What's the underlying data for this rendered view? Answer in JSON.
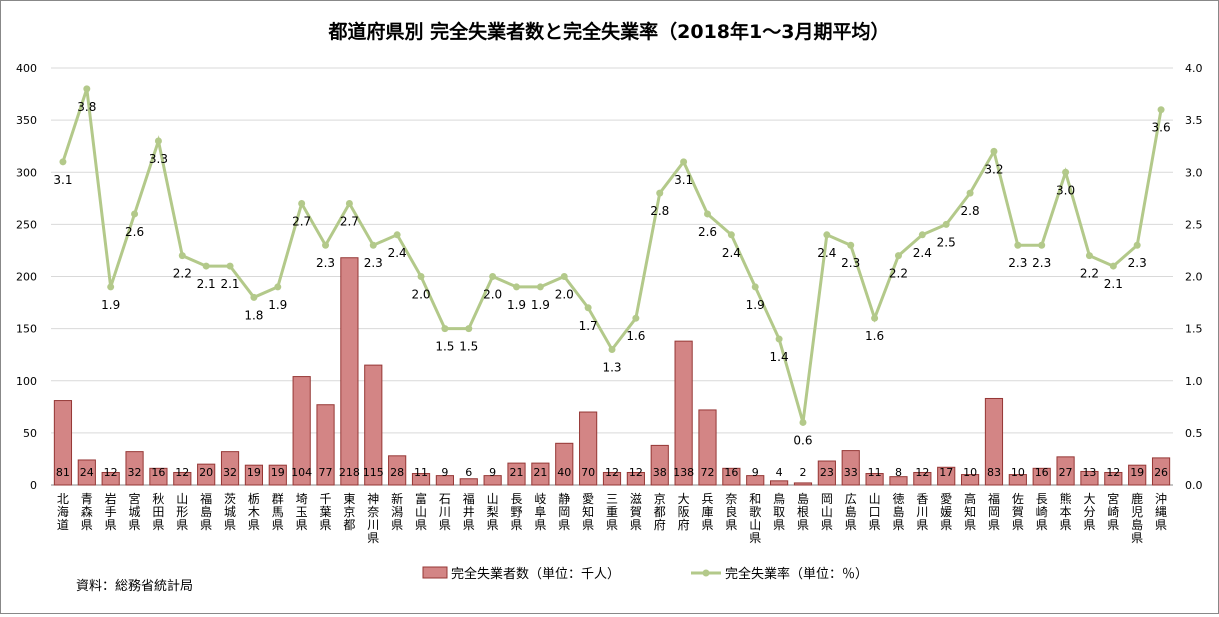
{
  "chart_data": {
    "type": "bar+line",
    "title": "都道府県別 完全失業者数と完全失業率（2018年1～3月期平均）",
    "source": "資料：総務省統計局",
    "categories": [
      "北海道",
      "青森県",
      "岩手県",
      "宮城県",
      "秋田県",
      "山形県",
      "福島県",
      "茨城県",
      "栃木県",
      "群馬県",
      "埼玉県",
      "千葉県",
      "東京都",
      "神奈川県",
      "新潟県",
      "富山県",
      "石川県",
      "福井県",
      "山梨県",
      "長野県",
      "岐阜県",
      "静岡県",
      "愛知県",
      "三重県",
      "滋賀県",
      "京都府",
      "大阪府",
      "兵庫県",
      "奈良県",
      "和歌山県",
      "鳥取県",
      "島根県",
      "岡山県",
      "広島県",
      "山口県",
      "徳島県",
      "香川県",
      "愛媛県",
      "高知県",
      "福岡県",
      "佐賀県",
      "長崎県",
      "熊本県",
      "大分県",
      "宮崎県",
      "鹿児島県",
      "沖縄県"
    ],
    "series": [
      {
        "name": "完全失業者数（単位：千人）",
        "type": "bar",
        "axis": "left",
        "color": "#d38585",
        "values": [
          81,
          24,
          12,
          32,
          16,
          12,
          20,
          32,
          19,
          19,
          104,
          77,
          218,
          115,
          28,
          11,
          9,
          6,
          9,
          21,
          21,
          40,
          70,
          12,
          12,
          38,
          138,
          72,
          16,
          9,
          4,
          2,
          23,
          33,
          11,
          8,
          12,
          17,
          10,
          83,
          10,
          16,
          27,
          13,
          12,
          19,
          26
        ]
      },
      {
        "name": "完全失業率（単位：％）",
        "type": "line",
        "axis": "right",
        "color": "#b3c98a",
        "values": [
          3.1,
          3.8,
          1.9,
          2.6,
          3.3,
          2.2,
          2.1,
          2.1,
          1.8,
          1.9,
          2.7,
          2.3,
          2.7,
          2.3,
          2.4,
          2.0,
          1.5,
          1.5,
          2.0,
          1.9,
          1.9,
          2.0,
          1.7,
          1.3,
          1.6,
          2.8,
          3.1,
          2.6,
          2.4,
          1.9,
          1.4,
          0.6,
          2.4,
          2.3,
          1.6,
          2.2,
          2.4,
          2.5,
          2.8,
          3.2,
          2.3,
          2.3,
          3.0,
          2.2,
          2.1,
          2.3,
          3.6
        ]
      }
    ],
    "ylim_left": [
      0,
      400
    ],
    "yticks_left": [
      "0",
      "50",
      "100",
      "150",
      "200",
      "250",
      "300",
      "350",
      "400"
    ],
    "ylim_right": [
      0,
      4
    ],
    "yticks_right": [
      "0.0",
      "0.5",
      "1.0",
      "1.5",
      "2.0",
      "2.5",
      "3.0",
      "3.5",
      "4.0"
    ],
    "grid": true,
    "legend": "bottom"
  }
}
